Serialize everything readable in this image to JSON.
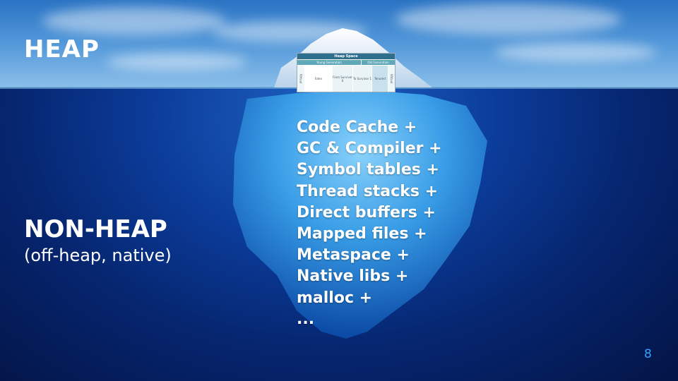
{
  "slide": {
    "heap_title": "HEAP",
    "nonheap_title": "NON-HEAP",
    "nonheap_subtitle": "(off-heap, native)",
    "page_number": "8"
  },
  "non_heap_items": [
    "Code Cache +",
    "GC & Compiler +",
    "Symbol tables +",
    "Thread stacks +",
    "Direct buffers +",
    "Mapped files +",
    "Metaspace +",
    "Native libs +",
    "malloc +",
    "..."
  ],
  "heap_diagram": {
    "title": "Heap Space",
    "young_generation": "Young Generation",
    "old_generation": "Old Generation",
    "virtual_left": "Virtual",
    "eden": "Eden",
    "from_survivor": "From Survivor 0",
    "to_survivor": "To Survivor 1",
    "tenured": "Tenured",
    "virtual_right": "Virtual"
  },
  "colors": {
    "title_text": "#ffffff",
    "page_number": "#3aa0ff",
    "sky": "#4f95d8",
    "deep_sea": "#031446",
    "ice": "#e8f3fb"
  }
}
